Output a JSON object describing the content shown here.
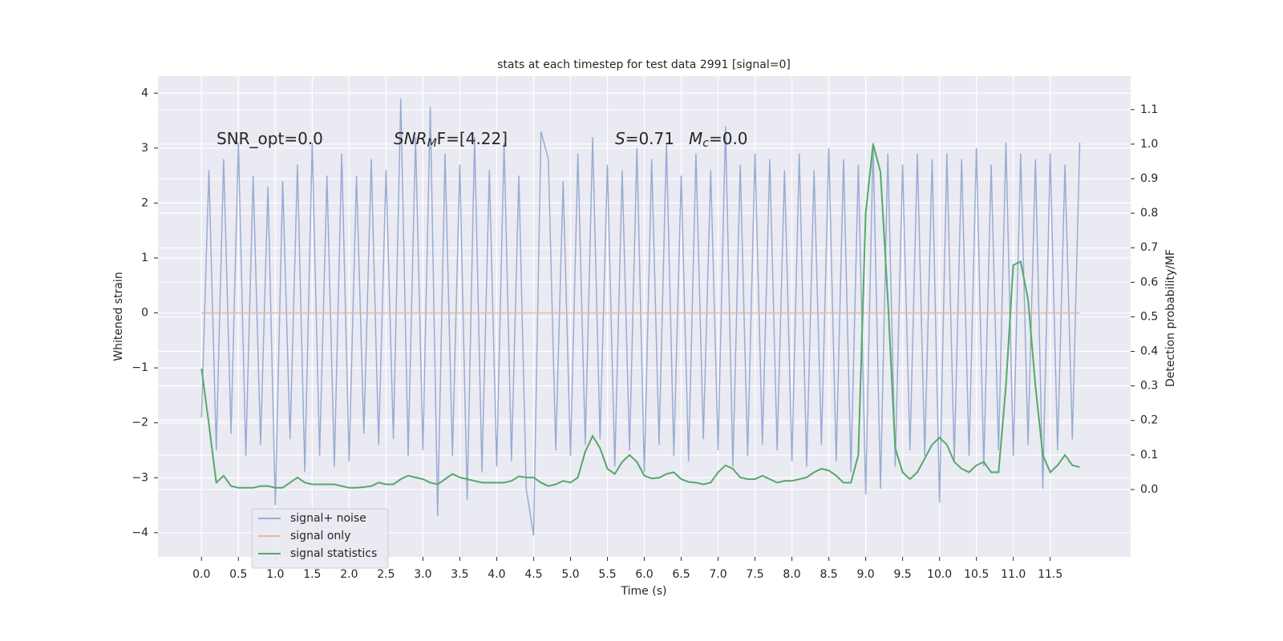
{
  "chart_data": {
    "type": "line",
    "title": "stats at each timestep for test data 2991 [signal=0]",
    "xlabel": "Time (s)",
    "ylabel": "Whitened strain",
    "y2label": "Detection probability/MF",
    "annotations": [
      [
        "SNR_opt=0.0"
      ],
      [
        "SNR",
        "M",
        "F=[4.22]"
      ],
      [
        "S",
        "=0.71"
      ],
      [
        "M",
        "c",
        "=0.0"
      ]
    ],
    "grid": true,
    "legend": "lower left",
    "xlim": [
      -0.59,
      12.59
    ],
    "ylim": [
      -4.44,
      4.31
    ],
    "y2lim": [
      -0.195,
      1.197
    ],
    "xticks": [
      {
        "value": 0,
        "label": "0.0"
      },
      {
        "value": 0.5,
        "label": "0.5"
      },
      {
        "value": 1,
        "label": "1.0"
      },
      {
        "value": 1.5,
        "label": "1.5"
      },
      {
        "value": 2,
        "label": "2.0"
      },
      {
        "value": 2.5,
        "label": "2.5"
      },
      {
        "value": 3,
        "label": "3.0"
      },
      {
        "value": 3.5,
        "label": "3.5"
      },
      {
        "value": 4,
        "label": "4.0"
      },
      {
        "value": 4.5,
        "label": "4.5"
      },
      {
        "value": 5,
        "label": "5.0"
      },
      {
        "value": 5.5,
        "label": "5.5"
      },
      {
        "value": 6,
        "label": "6.0"
      },
      {
        "value": 6.5,
        "label": "6.5"
      },
      {
        "value": 7,
        "label": "7.0"
      },
      {
        "value": 7.5,
        "label": "7.5"
      },
      {
        "value": 8,
        "label": "8.0"
      },
      {
        "value": 8.5,
        "label": "8.5"
      },
      {
        "value": 9,
        "label": "9.0"
      },
      {
        "value": 9.5,
        "label": "9.5"
      },
      {
        "value": 10,
        "label": "10.0"
      },
      {
        "value": 10.5,
        "label": "10.5"
      },
      {
        "value": 11,
        "label": "11.0"
      },
      {
        "value": 11.5,
        "label": "11.5"
      }
    ],
    "yticks": [
      {
        "value": -4,
        "label": "−4"
      },
      {
        "value": -3,
        "label": "−3"
      },
      {
        "value": -2,
        "label": "−2"
      },
      {
        "value": -1,
        "label": "−1"
      },
      0,
      1,
      2,
      3,
      4
    ],
    "y2ticks": [
      {
        "value": 0,
        "label": "0.0"
      },
      {
        "value": 0.1,
        "label": "0.1"
      },
      {
        "value": 0.2,
        "label": "0.2"
      },
      {
        "value": 0.3,
        "label": "0.3"
      },
      {
        "value": 0.4,
        "label": "0.4"
      },
      {
        "value": 0.5,
        "label": "0.5"
      },
      {
        "value": 0.6,
        "label": "0.6"
      },
      {
        "value": 0.7,
        "label": "0.7"
      },
      {
        "value": 0.8,
        "label": "0.8"
      },
      {
        "value": 0.9,
        "label": "0.9"
      },
      {
        "value": 1,
        "label": "1.0"
      },
      {
        "value": 1.1,
        "label": "1.1"
      }
    ],
    "x": [
      0,
      0.1,
      0.2,
      0.3,
      0.4,
      0.5,
      0.6,
      0.7,
      0.8,
      0.9,
      1,
      1.1,
      1.2,
      1.3,
      1.4,
      1.5,
      1.6,
      1.7,
      1.8,
      1.9,
      2,
      2.1,
      2.2,
      2.3,
      2.4,
      2.5,
      2.6,
      2.7,
      2.8,
      2.9,
      3,
      3.1,
      3.2,
      3.3,
      3.4,
      3.5,
      3.6,
      3.7,
      3.8,
      3.9,
      4,
      4.1,
      4.2,
      4.3,
      4.4,
      4.5,
      4.6,
      4.7,
      4.8,
      4.9,
      5,
      5.1,
      5.2,
      5.3,
      5.4,
      5.5,
      5.6,
      5.7,
      5.8,
      5.9,
      6,
      6.1,
      6.2,
      6.3,
      6.4,
      6.5,
      6.6,
      6.7,
      6.8,
      6.9,
      7,
      7.1,
      7.2,
      7.3,
      7.4,
      7.5,
      7.6,
      7.7,
      7.8,
      7.9,
      8,
      8.1,
      8.2,
      8.3,
      8.4,
      8.5,
      8.6,
      8.7,
      8.8,
      8.9,
      9,
      9.1,
      9.2,
      9.3,
      9.4,
      9.5,
      9.6,
      9.7,
      9.8,
      9.9,
      10,
      10.1,
      10.2,
      10.3,
      10.4,
      10.5,
      10.6,
      10.7,
      10.8,
      10.9,
      11,
      11.1,
      11.2,
      11.3,
      11.4,
      11.5,
      11.6,
      11.7,
      11.8,
      11.9
    ],
    "series": [
      {
        "name": "signal+ noise",
        "color": "#99acd3",
        "values": [
          -1.9,
          2.6,
          -2.5,
          2.8,
          -2.2,
          3.1,
          -2.6,
          2.5,
          -2.4,
          2.3,
          -3.5,
          2.4,
          -2.3,
          2.7,
          -2.9,
          3.1,
          -2.6,
          2.5,
          -2.8,
          2.9,
          -2.7,
          2.5,
          -2.2,
          2.8,
          -2.4,
          2.6,
          -2.3,
          3.9,
          -2.6,
          3.2,
          -2.5,
          3.75,
          -3.7,
          2.9,
          -2.6,
          2.7,
          -3.4,
          3.2,
          -2.9,
          2.6,
          -2.8,
          3.1,
          -2.7,
          2.5,
          -3.2,
          -4.05,
          3.3,
          2.8,
          -2.5,
          2.4,
          -2.6,
          2.9,
          -2.4,
          3.2,
          -2.3,
          2.7,
          -2.8,
          2.6,
          -2.5,
          3.0,
          -2.9,
          2.8,
          -2.4,
          3.1,
          -2.6,
          2.5,
          -2.7,
          2.9,
          -2.3,
          2.6,
          -2.5,
          3.4,
          -2.8,
          2.7,
          -2.6,
          2.9,
          -2.4,
          2.8,
          -2.5,
          2.6,
          -2.7,
          2.9,
          -2.8,
          2.6,
          -2.4,
          3.0,
          -2.7,
          2.8,
          -2.9,
          2.7,
          -3.3,
          3.1,
          -3.2,
          2.9,
          -2.8,
          2.7,
          -2.5,
          2.9,
          -2.6,
          2.8,
          -3.45,
          2.9,
          -2.7,
          2.8,
          -2.6,
          3.0,
          -2.8,
          2.7,
          -2.5,
          3.1,
          -2.6,
          2.9,
          -2.4,
          2.8,
          -3.2,
          2.9,
          -2.5,
          2.7,
          -2.3,
          3.1
        ]
      },
      {
        "name": "signal only",
        "color": "#e8b9a0",
        "values": [
          0,
          0,
          0,
          0,
          0,
          0,
          0,
          0,
          0,
          0,
          0,
          0,
          0,
          0,
          0,
          0,
          0,
          0,
          0,
          0,
          0,
          0,
          0,
          0,
          0,
          0,
          0,
          0,
          0,
          0,
          0,
          0,
          0,
          0,
          0,
          0,
          0,
          0,
          0,
          0,
          0,
          0,
          0,
          0,
          0,
          0,
          0,
          0,
          0,
          0,
          0,
          0,
          0,
          0,
          0,
          0,
          0,
          0,
          0,
          0,
          0,
          0,
          0,
          0,
          0,
          0,
          0,
          0,
          0,
          0,
          0,
          0,
          0,
          0,
          0,
          0,
          0,
          0,
          0,
          0,
          0,
          0,
          0,
          0,
          0,
          0,
          0,
          0,
          0,
          0,
          0,
          0,
          0,
          0,
          0,
          0,
          0,
          0,
          0,
          0,
          0,
          0,
          0,
          0,
          0,
          0,
          0,
          0,
          0,
          0,
          0,
          0,
          0,
          0,
          0,
          0,
          0,
          0,
          0,
          0
        ]
      },
      {
        "name": "signal statistics",
        "color": "#55a868",
        "axis": "y2",
        "values": [
          0.35,
          0.19,
          0.02,
          0.04,
          0.01,
          0.005,
          0.005,
          0.005,
          0.01,
          0.01,
          0.005,
          0.005,
          0.02,
          0.035,
          0.02,
          0.015,
          0.015,
          0.015,
          0.015,
          0.01,
          0.005,
          0.005,
          0.007,
          0.01,
          0.02,
          0.015,
          0.015,
          0.03,
          0.04,
          0.035,
          0.03,
          0.02,
          0.015,
          0.03,
          0.045,
          0.035,
          0.03,
          0.025,
          0.02,
          0.02,
          0.02,
          0.02,
          0.025,
          0.038,
          0.035,
          0.035,
          0.02,
          0.01,
          0.015,
          0.025,
          0.02,
          0.035,
          0.11,
          0.155,
          0.12,
          0.06,
          0.045,
          0.08,
          0.1,
          0.08,
          0.04,
          0.032,
          0.034,
          0.045,
          0.05,
          0.03,
          0.022,
          0.02,
          0.015,
          0.02,
          0.05,
          0.07,
          0.06,
          0.035,
          0.03,
          0.03,
          0.04,
          0.03,
          0.02,
          0.025,
          0.025,
          0.03,
          0.035,
          0.05,
          0.06,
          0.055,
          0.04,
          0.02,
          0.02,
          0.1,
          0.8,
          1.0,
          0.92,
          0.55,
          0.12,
          0.05,
          0.03,
          0.05,
          0.09,
          0.13,
          0.15,
          0.13,
          0.08,
          0.06,
          0.05,
          0.07,
          0.08,
          0.05,
          0.05,
          0.3,
          0.65,
          0.66,
          0.55,
          0.3,
          0.1,
          0.05,
          0.07,
          0.1,
          0.07,
          0.065
        ]
      }
    ]
  }
}
